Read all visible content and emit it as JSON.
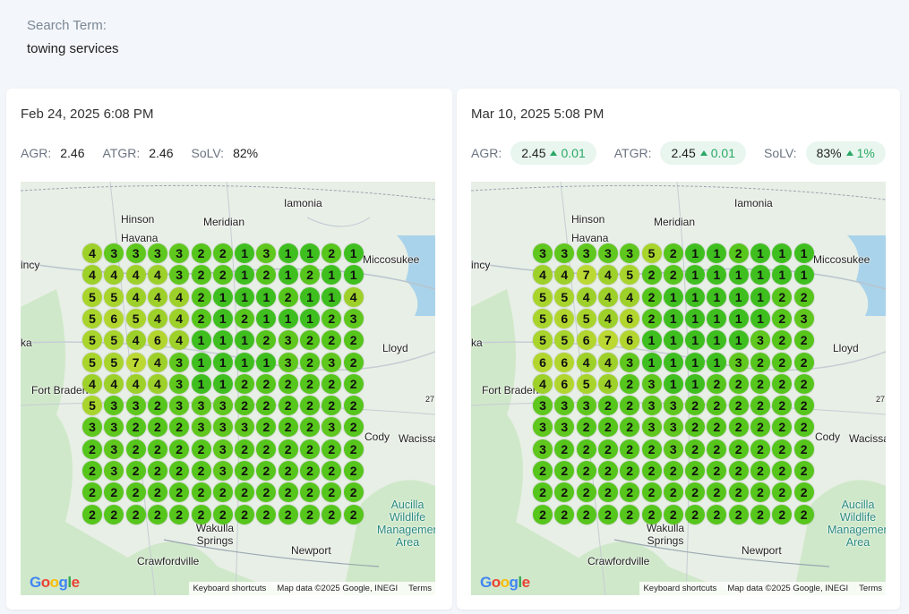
{
  "search": {
    "label": "Search Term:",
    "value": "towing services"
  },
  "panels": [
    {
      "date": "Feb 24, 2025 6:08 PM",
      "metrics": [
        {
          "label": "AGR:",
          "value": "2.46",
          "delta": ""
        },
        {
          "label": "ATGR:",
          "value": "2.46",
          "delta": ""
        },
        {
          "label": "SoLV:",
          "value": "82%",
          "delta": ""
        }
      ],
      "grid": [
        [
          4,
          3,
          3,
          3,
          3,
          2,
          2,
          1,
          3,
          1,
          1,
          2,
          1
        ],
        [
          4,
          4,
          4,
          4,
          3,
          2,
          2,
          1,
          2,
          1,
          2,
          1,
          1
        ],
        [
          5,
          5,
          4,
          4,
          4,
          2,
          1,
          1,
          1,
          2,
          1,
          1,
          4
        ],
        [
          5,
          6,
          5,
          4,
          4,
          2,
          1,
          2,
          1,
          1,
          1,
          2,
          3
        ],
        [
          5,
          5,
          4,
          6,
          4,
          1,
          1,
          1,
          2,
          3,
          2,
          2,
          2
        ],
        [
          5,
          5,
          7,
          4,
          3,
          1,
          1,
          1,
          1,
          3,
          2,
          3,
          2
        ],
        [
          4,
          4,
          4,
          4,
          3,
          1,
          1,
          2,
          2,
          2,
          2,
          2,
          2
        ],
        [
          5,
          3,
          3,
          2,
          3,
          3,
          3,
          2,
          2,
          2,
          2,
          2,
          2
        ],
        [
          3,
          3,
          2,
          2,
          2,
          3,
          3,
          3,
          2,
          2,
          2,
          3,
          2
        ],
        [
          2,
          3,
          2,
          2,
          2,
          2,
          3,
          2,
          2,
          2,
          2,
          2,
          2
        ],
        [
          2,
          3,
          2,
          2,
          2,
          2,
          3,
          2,
          2,
          2,
          2,
          2,
          2
        ],
        [
          2,
          2,
          2,
          2,
          2,
          2,
          2,
          2,
          2,
          2,
          2,
          2,
          2
        ],
        [
          2,
          2,
          2,
          2,
          2,
          2,
          2,
          2,
          2,
          2,
          2,
          2,
          2
        ]
      ]
    },
    {
      "date": "Mar 10, 2025 5:08 PM",
      "metrics": [
        {
          "label": "AGR:",
          "value": "2.45",
          "delta": "0.01"
        },
        {
          "label": "ATGR:",
          "value": "2.45",
          "delta": "0.01"
        },
        {
          "label": "SoLV:",
          "value": "83%",
          "delta": "1%"
        }
      ],
      "grid": [
        [
          3,
          3,
          3,
          3,
          3,
          5,
          2,
          1,
          1,
          2,
          1,
          1,
          1
        ],
        [
          4,
          4,
          7,
          4,
          5,
          2,
          2,
          1,
          1,
          1,
          1,
          1,
          1
        ],
        [
          5,
          5,
          4,
          4,
          4,
          2,
          1,
          1,
          1,
          1,
          1,
          2,
          2
        ],
        [
          5,
          6,
          5,
          4,
          6,
          2,
          1,
          1,
          1,
          1,
          1,
          2,
          3
        ],
        [
          5,
          5,
          6,
          7,
          6,
          1,
          1,
          1,
          1,
          1,
          3,
          2,
          2
        ],
        [
          6,
          6,
          4,
          4,
          3,
          1,
          1,
          1,
          1,
          3,
          2,
          2,
          2
        ],
        [
          4,
          6,
          5,
          4,
          2,
          3,
          1,
          1,
          2,
          2,
          2,
          2,
          2
        ],
        [
          3,
          3,
          3,
          2,
          2,
          3,
          3,
          2,
          2,
          2,
          2,
          2,
          2
        ],
        [
          3,
          3,
          2,
          2,
          2,
          3,
          3,
          2,
          2,
          2,
          2,
          2,
          2
        ],
        [
          3,
          2,
          2,
          2,
          2,
          2,
          3,
          2,
          2,
          2,
          2,
          2,
          2
        ],
        [
          2,
          2,
          2,
          2,
          2,
          2,
          2,
          2,
          2,
          2,
          2,
          2,
          2
        ],
        [
          2,
          2,
          2,
          2,
          2,
          2,
          2,
          2,
          2,
          2,
          2,
          2,
          2
        ],
        [
          2,
          2,
          2,
          2,
          2,
          2,
          2,
          2,
          2,
          2,
          2,
          2,
          2
        ]
      ]
    }
  ],
  "map": {
    "places": [
      "Iamonia",
      "Hinson",
      "Meridian",
      "Havana",
      "incy",
      "Miccosukee",
      "Lloyd",
      "ka",
      "Fort Braden",
      "Cody",
      "Wacissa",
      "Wakulla Springs",
      "Newport",
      "Crawfordville",
      "Aucilla Wildlife Management Area",
      "27"
    ],
    "google_logo": "Google",
    "attribution": [
      "Keyboard shortcuts",
      "Map data ©2025 Google, INEGI",
      "Terms"
    ]
  },
  "colors": {
    "rank1": "#3fbf1f",
    "rank2": "#56c51c",
    "rank3": "#5fc71d",
    "rank4": "#9ed02a",
    "rank5": "#a8d42c",
    "rank6": "#b3d62f",
    "rank7": "#bcd833"
  }
}
